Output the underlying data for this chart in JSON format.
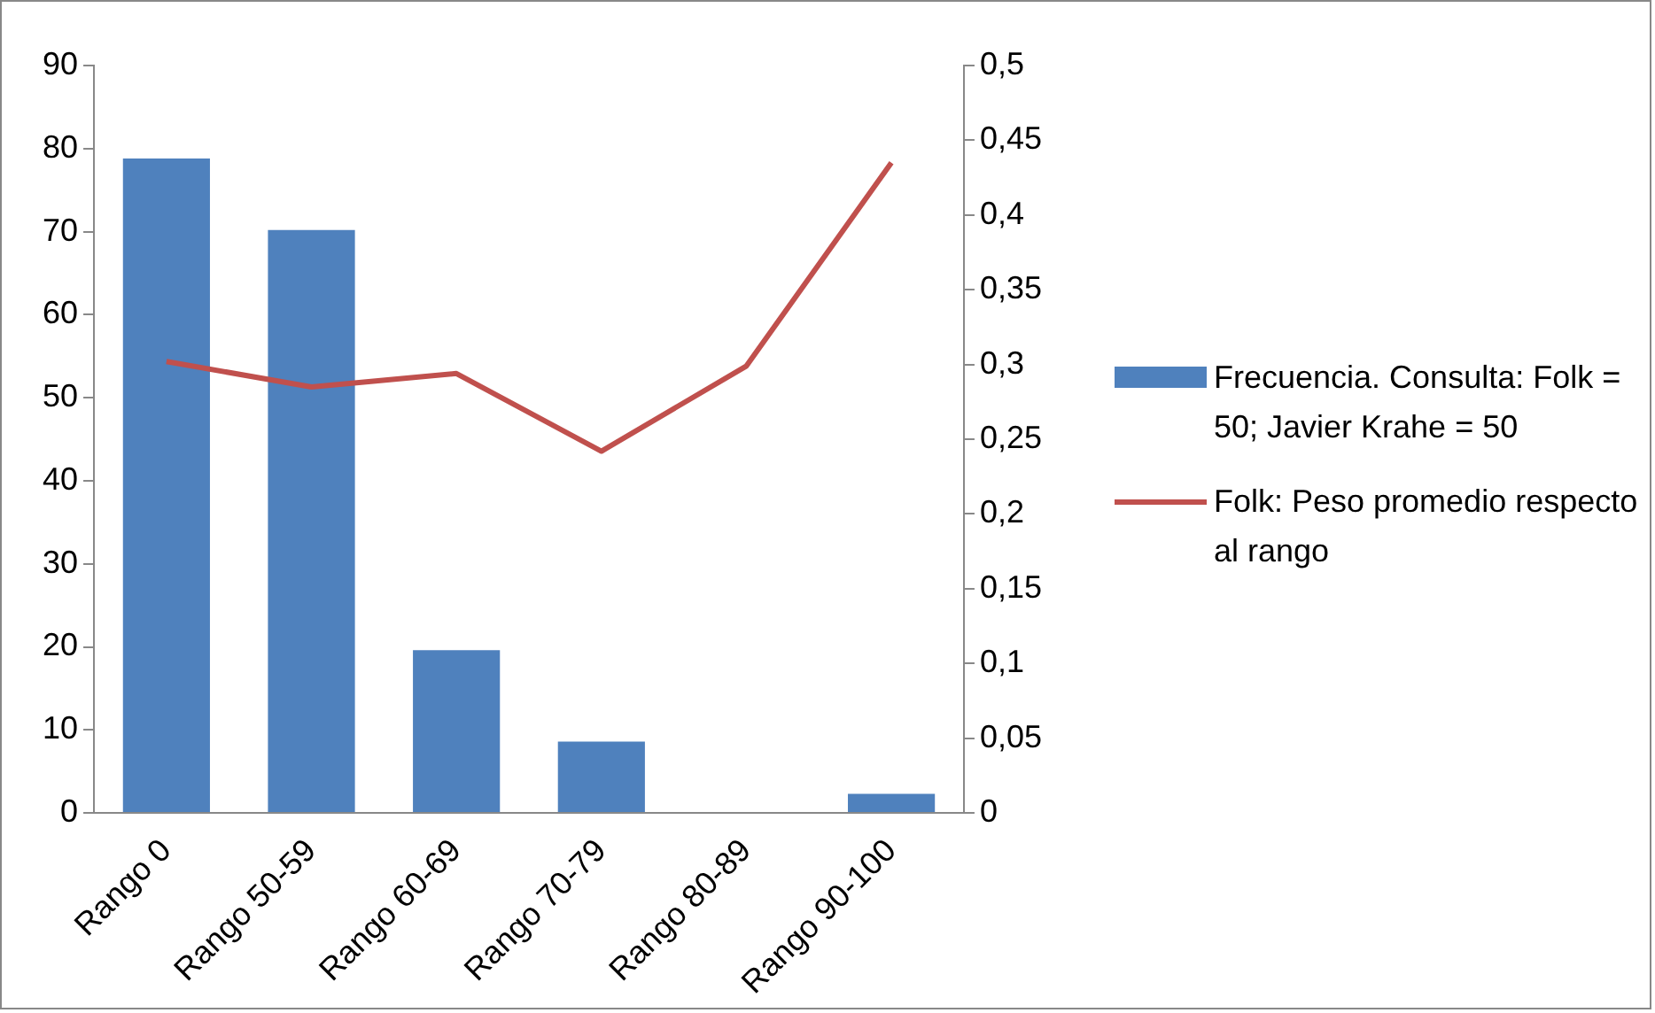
{
  "chart_data": {
    "type": "bar",
    "categories": [
      "Rango 0",
      "Rango 50-59",
      "Rango 60-69",
      "Rango 70-79",
      "Rango 80-89",
      "Rango 90-100"
    ],
    "series": [
      {
        "name": "Frecuencia. Consulta: Folk = 50; Javier Krahe = 50",
        "color": "#4f81bd",
        "values": [
          78.8,
          70.2,
          19.6,
          8.6,
          0,
          2.3
        ]
      },
      {
        "name": "Folk: Peso promedio respecto al rango",
        "type": "line",
        "axis": "y2",
        "color": "#c0504d",
        "values": [
          0.302,
          0.285,
          0.294,
          0.242,
          0.299,
          0.435
        ]
      }
    ],
    "ylim": [
      0,
      90
    ],
    "yticks": [
      0,
      10,
      20,
      30,
      40,
      50,
      60,
      70,
      80,
      90
    ],
    "y2lim": [
      0,
      0.5
    ],
    "y2ticks": [
      {
        "value": 0,
        "label": "0"
      },
      {
        "value": 0.05,
        "label": "0,05"
      },
      {
        "value": 0.1,
        "label": "0,1"
      },
      {
        "value": 0.15,
        "label": "0,15"
      },
      {
        "value": 0.2,
        "label": "0,2"
      },
      {
        "value": 0.25,
        "label": "0,25"
      },
      {
        "value": 0.3,
        "label": "0,3"
      },
      {
        "value": 0.35,
        "label": "0,35"
      },
      {
        "value": 0.4,
        "label": "0,4"
      },
      {
        "value": 0.45,
        "label": "0,45"
      },
      {
        "value": 0.5,
        "label": "0,5"
      }
    ],
    "grid": false,
    "legend": "right",
    "marker": "none"
  }
}
